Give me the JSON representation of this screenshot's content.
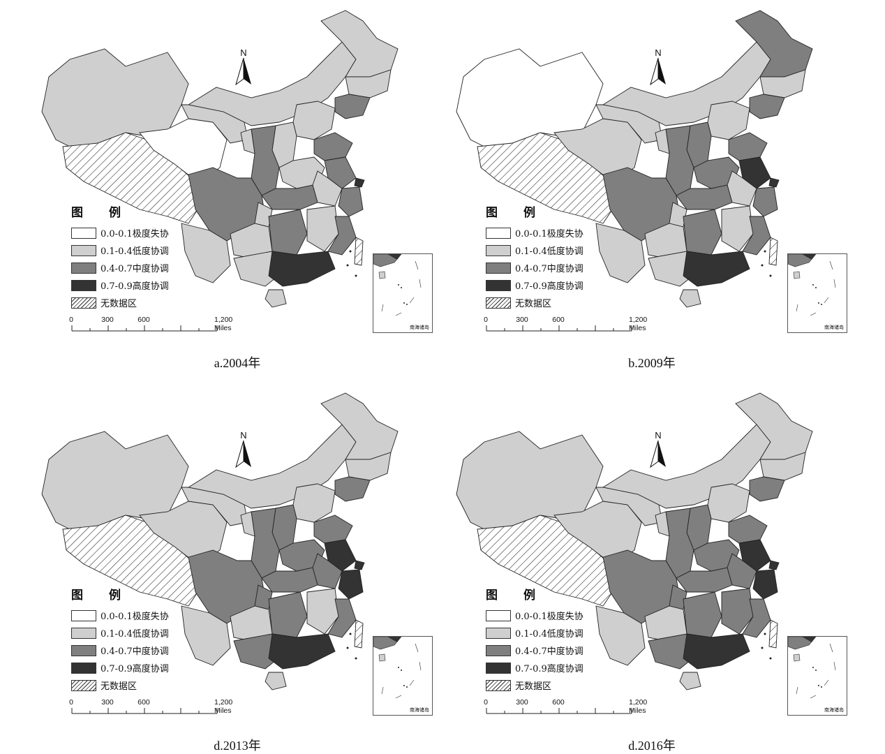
{
  "legend": {
    "title": "图　例",
    "items": [
      {
        "label": "0.0-0.1极度失协",
        "fill": "#ffffff"
      },
      {
        "label": "0.1-0.4低度协调",
        "fill": "#cfcfcf"
      },
      {
        "label": "0.4-0.7中度协调",
        "fill": "#7f7f7f"
      },
      {
        "label": "0.7-0.9高度协调",
        "fill": "#333333"
      },
      {
        "label": "无数据区",
        "fill": "hatch"
      }
    ]
  },
  "scale_bar": {
    "labels": [
      "0",
      "300",
      "600",
      "1,200 Miles"
    ]
  },
  "north_label": "N",
  "inset_label": "南海诸岛",
  "panels": [
    {
      "caption": "a.2004年"
    },
    {
      "caption": "b.2009年"
    },
    {
      "caption": "d.2013年"
    },
    {
      "caption": "d.2016年"
    }
  ],
  "colors": {
    "white": "#ffffff",
    "light": "#cfcfcf",
    "mid": "#7f7f7f",
    "dark": "#333333",
    "stroke": "#222222"
  }
}
